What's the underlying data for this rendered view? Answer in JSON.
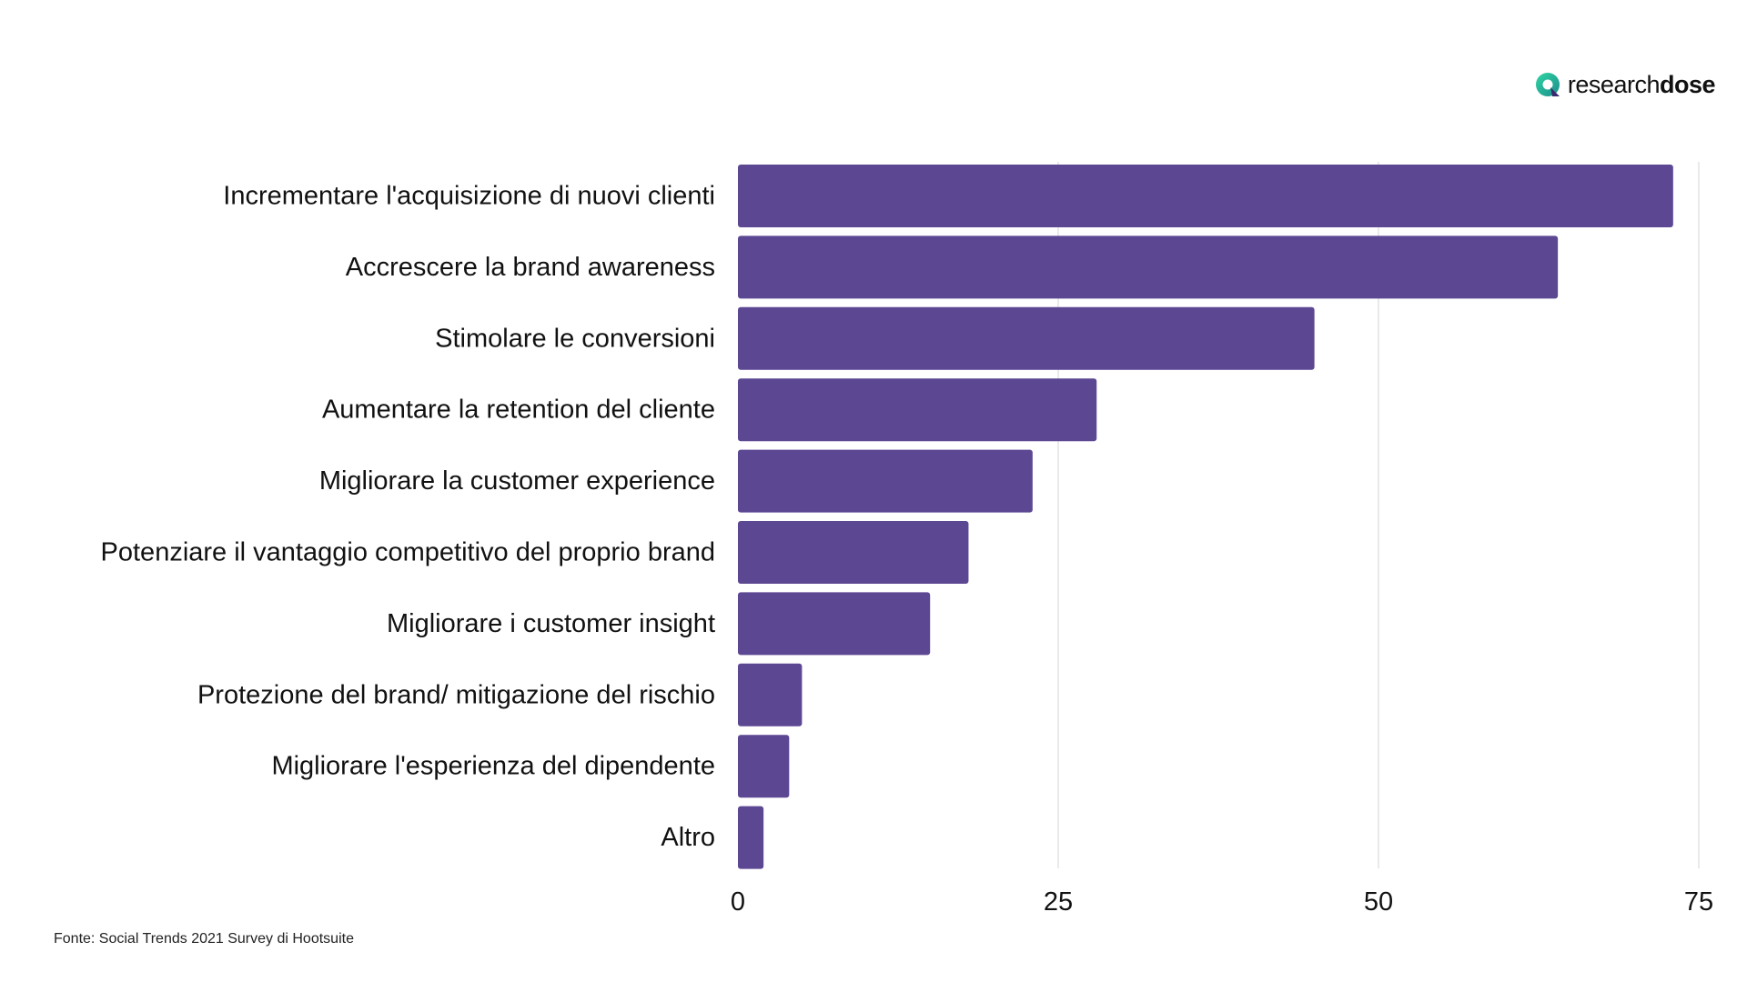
{
  "logo": {
    "icon": "researchdose-logo-icon",
    "text_light": "research",
    "text_bold": "dose"
  },
  "source": "Fonte: Social Trends 2021 Survey di Hootsuite",
  "chart_data": {
    "type": "bar",
    "orientation": "horizontal",
    "title": "",
    "xlabel": "",
    "ylabel": "",
    "categories": [
      "Incrementare l'acquisizione di nuovi clienti",
      "Accrescere la brand awareness",
      "Stimolare le conversioni",
      "Aumentare la retention del cliente",
      "Migliorare la customer experience",
      "Potenziare il vantaggio competitivo del proprio brand",
      "Migliorare i customer insight",
      "Protezione del brand/ mitigazione del rischio",
      "Migliorare l'esperienza del dipendente",
      "Altro"
    ],
    "values": [
      73,
      64,
      45,
      28,
      23,
      18,
      15,
      5,
      4,
      2
    ],
    "xlim": [
      0,
      75
    ],
    "xticks": [
      "0",
      "25",
      "50",
      "75"
    ],
    "grid": "vertical",
    "bar_color": "#5c4793",
    "grid_color": "#e3e3e3"
  }
}
